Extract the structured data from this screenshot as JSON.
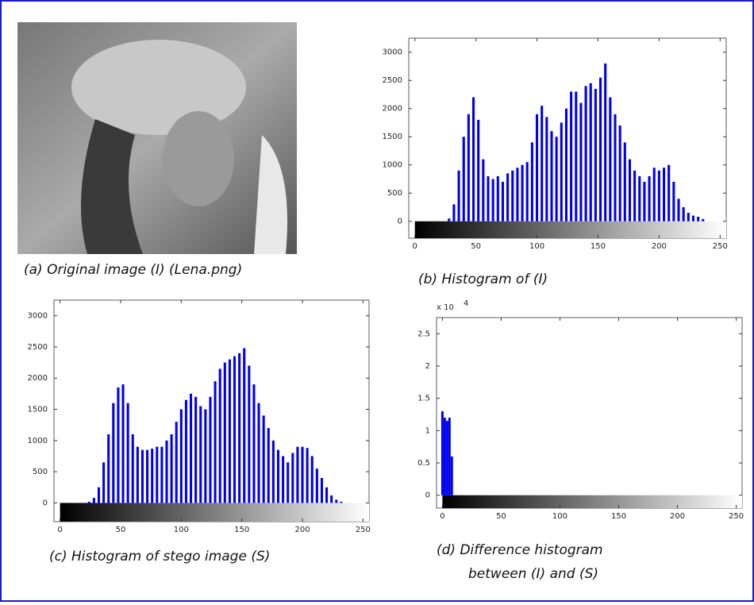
{
  "captions": {
    "a": "(a) Original image (I) (Lena.png)",
    "b": "(b) Histogram of  (I)",
    "c": "(c) Histogram of stego image (S)",
    "d": "(d) Difference histogram",
    "d2": "between (I) and (S)"
  },
  "chart_data": [
    {
      "type": "bar",
      "color": "#0000ee",
      "x": [
        0,
        4,
        8,
        12,
        16,
        20,
        24,
        28,
        32,
        36,
        40,
        44,
        48,
        52,
        56,
        60,
        64,
        68,
        72,
        76,
        80,
        84,
        88,
        92,
        96,
        100,
        104,
        108,
        112,
        116,
        120,
        124,
        128,
        132,
        136,
        140,
        144,
        148,
        152,
        156,
        160,
        164,
        168,
        172,
        176,
        180,
        184,
        188,
        192,
        196,
        200,
        204,
        208,
        212,
        216,
        220,
        224,
        228,
        232,
        236,
        240,
        244,
        248,
        252
      ],
      "values": [
        0,
        0,
        0,
        0,
        0,
        0,
        0,
        50,
        300,
        900,
        1500,
        1900,
        2200,
        1800,
        1100,
        800,
        750,
        800,
        700,
        850,
        900,
        950,
        1000,
        1050,
        1400,
        1900,
        2050,
        1850,
        1600,
        1500,
        1750,
        2000,
        2300,
        2300,
        2100,
        2400,
        2450,
        2350,
        2550,
        2800,
        2200,
        1900,
        1700,
        1400,
        1100,
        900,
        800,
        700,
        800,
        950,
        900,
        950,
        1000,
        700,
        400,
        250,
        150,
        100,
        80,
        40,
        0,
        0,
        0,
        0
      ],
      "xlim": [
        -5,
        255
      ],
      "ylim": [
        -300,
        3250
      ],
      "xticks": [
        0,
        50,
        100,
        150,
        200,
        250
      ],
      "yticks": [
        0,
        500,
        1000,
        1500,
        2000,
        2500,
        3000
      ]
    },
    {
      "type": "bar",
      "color": "#0000ee",
      "x": [
        0,
        4,
        8,
        12,
        16,
        20,
        24,
        28,
        32,
        36,
        40,
        44,
        48,
        52,
        56,
        60,
        64,
        68,
        72,
        76,
        80,
        84,
        88,
        92,
        96,
        100,
        104,
        108,
        112,
        116,
        120,
        124,
        128,
        132,
        136,
        140,
        144,
        148,
        152,
        156,
        160,
        164,
        168,
        172,
        176,
        180,
        184,
        188,
        192,
        196,
        200,
        204,
        208,
        212,
        216,
        220,
        224,
        228,
        232,
        236,
        240,
        244,
        248,
        252
      ],
      "values": [
        0,
        0,
        0,
        0,
        0,
        0,
        20,
        80,
        250,
        650,
        1100,
        1600,
        1850,
        1900,
        1600,
        1100,
        900,
        850,
        850,
        870,
        900,
        900,
        1000,
        1100,
        1300,
        1500,
        1650,
        1750,
        1700,
        1550,
        1500,
        1700,
        1950,
        2150,
        2250,
        2300,
        2350,
        2400,
        2480,
        2200,
        1900,
        1600,
        1400,
        1200,
        1000,
        850,
        750,
        650,
        800,
        900,
        900,
        880,
        750,
        550,
        400,
        250,
        120,
        50,
        20,
        0,
        0,
        0,
        0,
        0
      ],
      "xlim": [
        -5,
        255
      ],
      "ylim": [
        -300,
        3250
      ],
      "xticks": [
        0,
        50,
        100,
        150,
        200,
        250
      ],
      "yticks": [
        0,
        500,
        1000,
        1500,
        2000,
        2500,
        3000
      ]
    },
    {
      "type": "bar",
      "color": "#0000ee",
      "multiplier": "x 10",
      "exponent": "4",
      "x": [
        0,
        2,
        4,
        6,
        8
      ],
      "values": [
        1.3,
        1.2,
        1.15,
        1.2,
        0.6
      ],
      "xlim": [
        -5,
        255
      ],
      "ylim": [
        -0.2,
        2.75
      ],
      "xticks": [
        0,
        50,
        100,
        150,
        200,
        250
      ],
      "yticks": [
        0,
        0.5,
        1,
        1.5,
        2,
        2.5
      ]
    }
  ]
}
